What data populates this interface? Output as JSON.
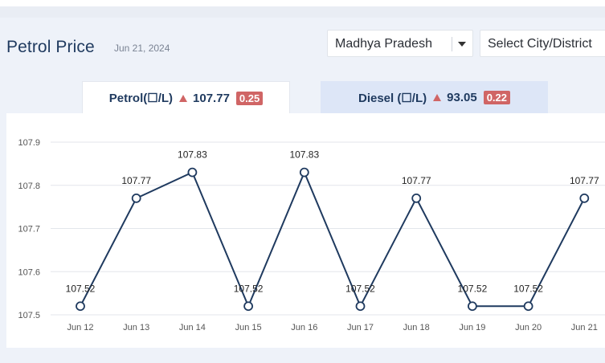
{
  "header": {
    "title": "Petrol Price",
    "date": "Jun 21, 2024"
  },
  "filters": {
    "state": "Madhya Pradesh",
    "city_placeholder": "Select City/District"
  },
  "tabs": [
    {
      "label": "Petrol(☐/L)",
      "value": "107.77",
      "change": "0.25"
    },
    {
      "label": "Diesel (☐/L)",
      "value": "93.05",
      "change": "0.22"
    }
  ],
  "colors": {
    "line": "#1f3a5f",
    "up_indicator": "#d06565",
    "active_tab": "#ffffff",
    "inactive_tab": "#dde6f7"
  },
  "chart_data": {
    "type": "line",
    "title": "",
    "xlabel": "",
    "ylabel": "",
    "categories": [
      "Jun 12",
      "Jun 13",
      "Jun 14",
      "Jun 15",
      "Jun 16",
      "Jun 17",
      "Jun 18",
      "Jun 19",
      "Jun 20",
      "Jun 21"
    ],
    "values": [
      107.52,
      107.77,
      107.83,
      107.52,
      107.83,
      107.52,
      107.77,
      107.52,
      107.52,
      107.77
    ],
    "data_labels": [
      "107.52",
      "107.77",
      "107.83",
      "107.52",
      "107.83",
      "107.52",
      "107.77",
      "107.52",
      "107.52",
      "107.77"
    ],
    "ylim": [
      107.5,
      107.9
    ],
    "yticks": [
      "107.5",
      "107.6",
      "107.7",
      "107.8",
      "107.9"
    ],
    "grid": true,
    "legend": "none"
  }
}
